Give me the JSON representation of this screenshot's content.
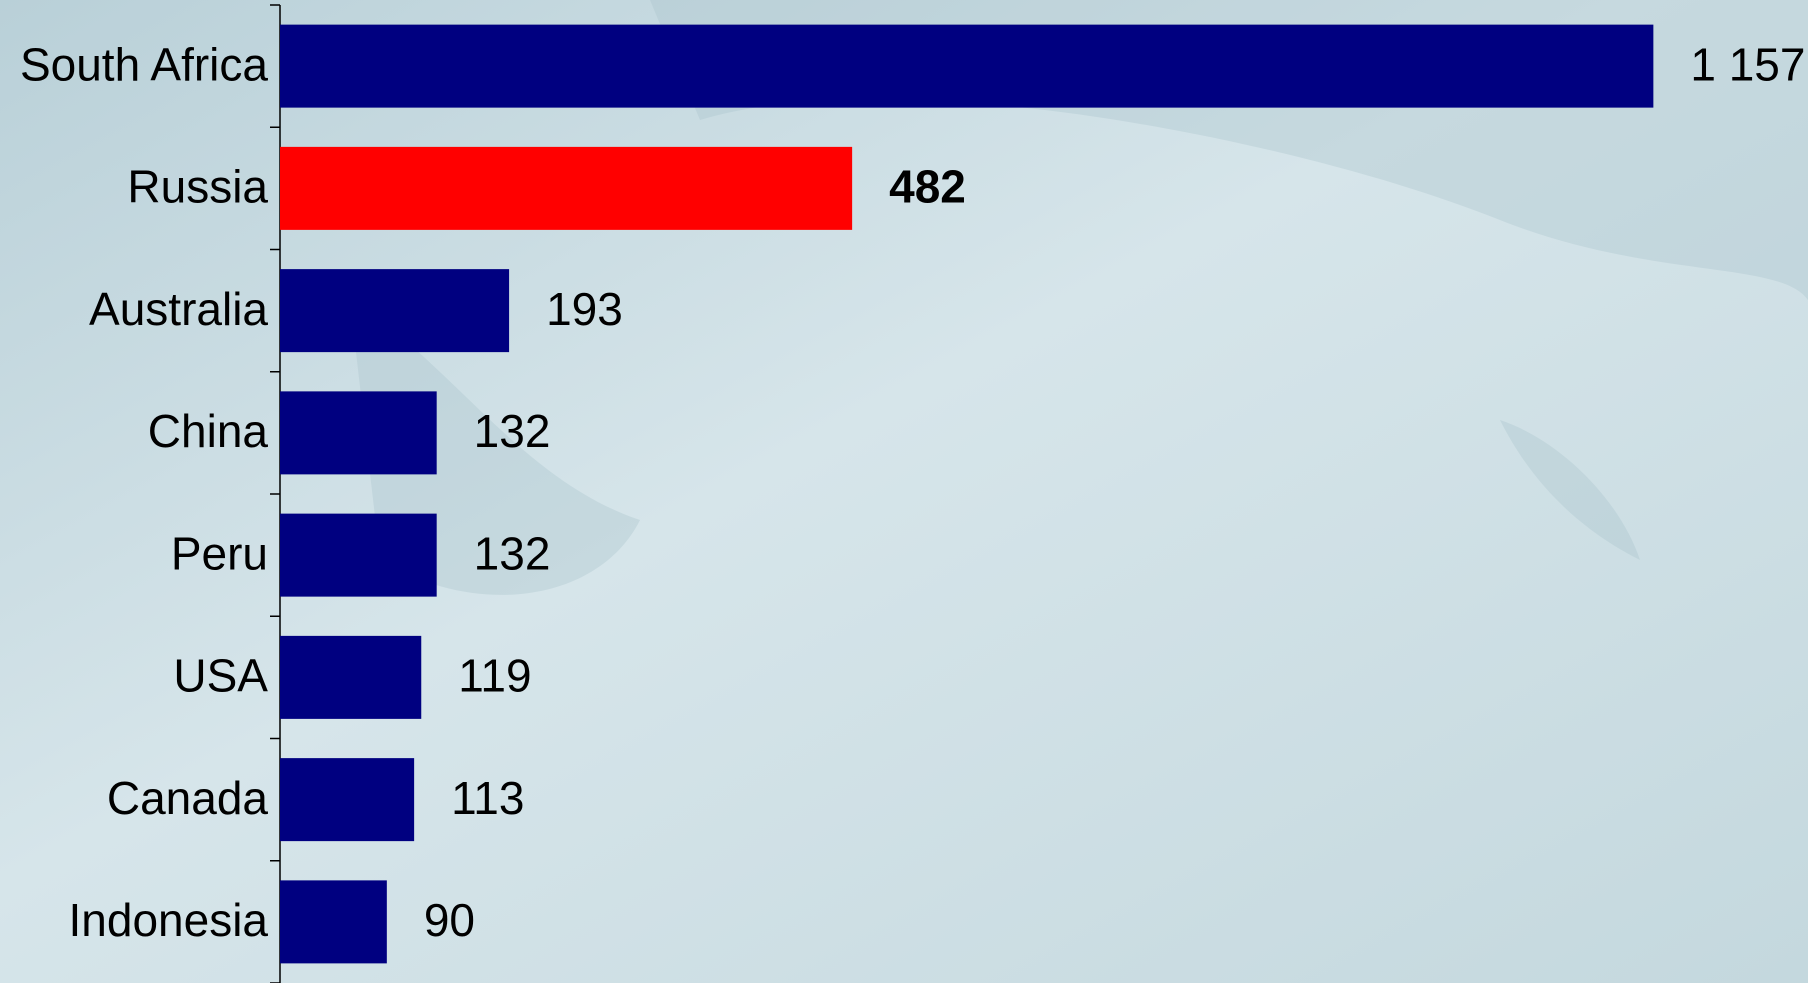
{
  "chart_data": {
    "type": "bar",
    "orientation": "horizontal",
    "categories": [
      "South Africa",
      "Russia",
      "Australia",
      "China",
      "Peru",
      "USA",
      "Canada",
      "Indonesia"
    ],
    "values": [
      1157,
      482,
      193,
      132,
      132,
      119,
      113,
      90
    ],
    "value_labels": [
      "1 157",
      "482",
      "193",
      "132",
      "132",
      "119",
      "113",
      "90"
    ],
    "color": "#000080",
    "colors": [
      "#000080",
      "#ff0000",
      "#000080",
      "#000080",
      "#000080",
      "#000080",
      "#000080",
      "#000080"
    ]
  }
}
